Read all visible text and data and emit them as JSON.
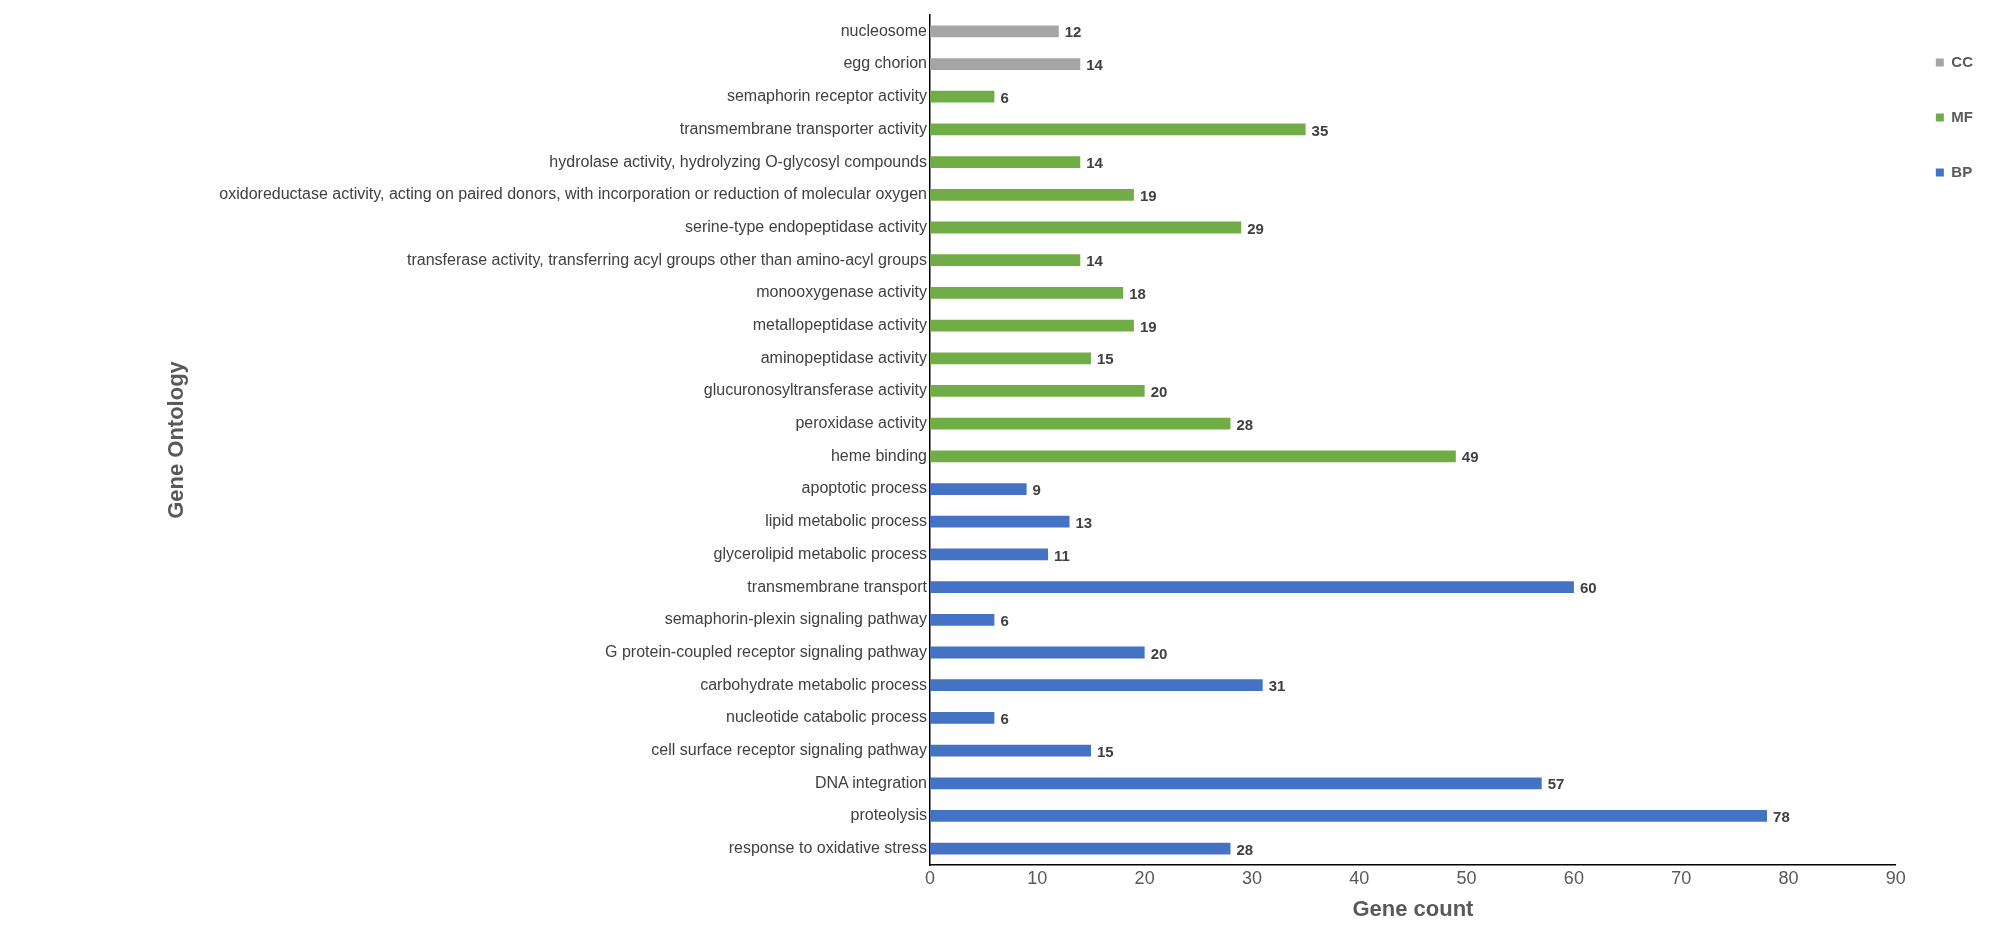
{
  "chart_data": {
    "type": "bar",
    "orientation": "horizontal",
    "stacked": true,
    "xlabel": "Gene count",
    "ylabel": "Gene Ontology",
    "categories": [
      "nucleosome",
      "egg chorion",
      "semaphorin receptor activity",
      "transmembrane transporter activity",
      "hydrolase activity, hydrolyzing O-glycosyl compounds",
      "oxidoreductase activity, acting on paired donors, with incorporation or reduction of molecular oxygen",
      "serine-type endopeptidase activity",
      "transferase activity, transferring acyl groups other than amino-acyl groups",
      "monooxygenase activity",
      "metallopeptidase activity",
      "aminopeptidase activity",
      "glucuronosyltransferase activity",
      "peroxidase activity",
      "heme binding",
      "apoptotic process",
      "lipid metabolic process",
      "glycerolipid metabolic process",
      "transmembrane transport",
      "semaphorin-plexin signaling pathway",
      "G protein-coupled receptor signaling pathway",
      "carbohydrate metabolic process",
      "nucleotide catabolic process",
      "cell surface receptor signaling pathway",
      "DNA integration",
      "proteolysis",
      "response to oxidative stress"
    ],
    "series": [
      {
        "name": "CC",
        "color": "#a5a5a5",
        "values": [
          12,
          14,
          null,
          null,
          null,
          null,
          null,
          null,
          null,
          null,
          null,
          null,
          null,
          null,
          null,
          null,
          null,
          null,
          null,
          null,
          null,
          null,
          null,
          null,
          null,
          null
        ]
      },
      {
        "name": "MF",
        "color": "#70ad47",
        "values": [
          null,
          null,
          6,
          35,
          14,
          19,
          29,
          14,
          18,
          19,
          15,
          20,
          28,
          49,
          null,
          null,
          null,
          null,
          null,
          null,
          null,
          null,
          null,
          null,
          null,
          null
        ]
      },
      {
        "name": "BP",
        "color": "#4472c4",
        "values": [
          null,
          null,
          null,
          null,
          null,
          null,
          null,
          null,
          null,
          null,
          null,
          null,
          null,
          null,
          9,
          13,
          11,
          60,
          6,
          20,
          31,
          6,
          15,
          57,
          78,
          28
        ]
      }
    ],
    "xlim": [
      0,
      90
    ],
    "xticks": [
      0,
      10,
      20,
      30,
      40,
      50,
      60,
      70,
      80,
      90
    ],
    "grid": false,
    "legend": "top right",
    "data_labels": true
  }
}
